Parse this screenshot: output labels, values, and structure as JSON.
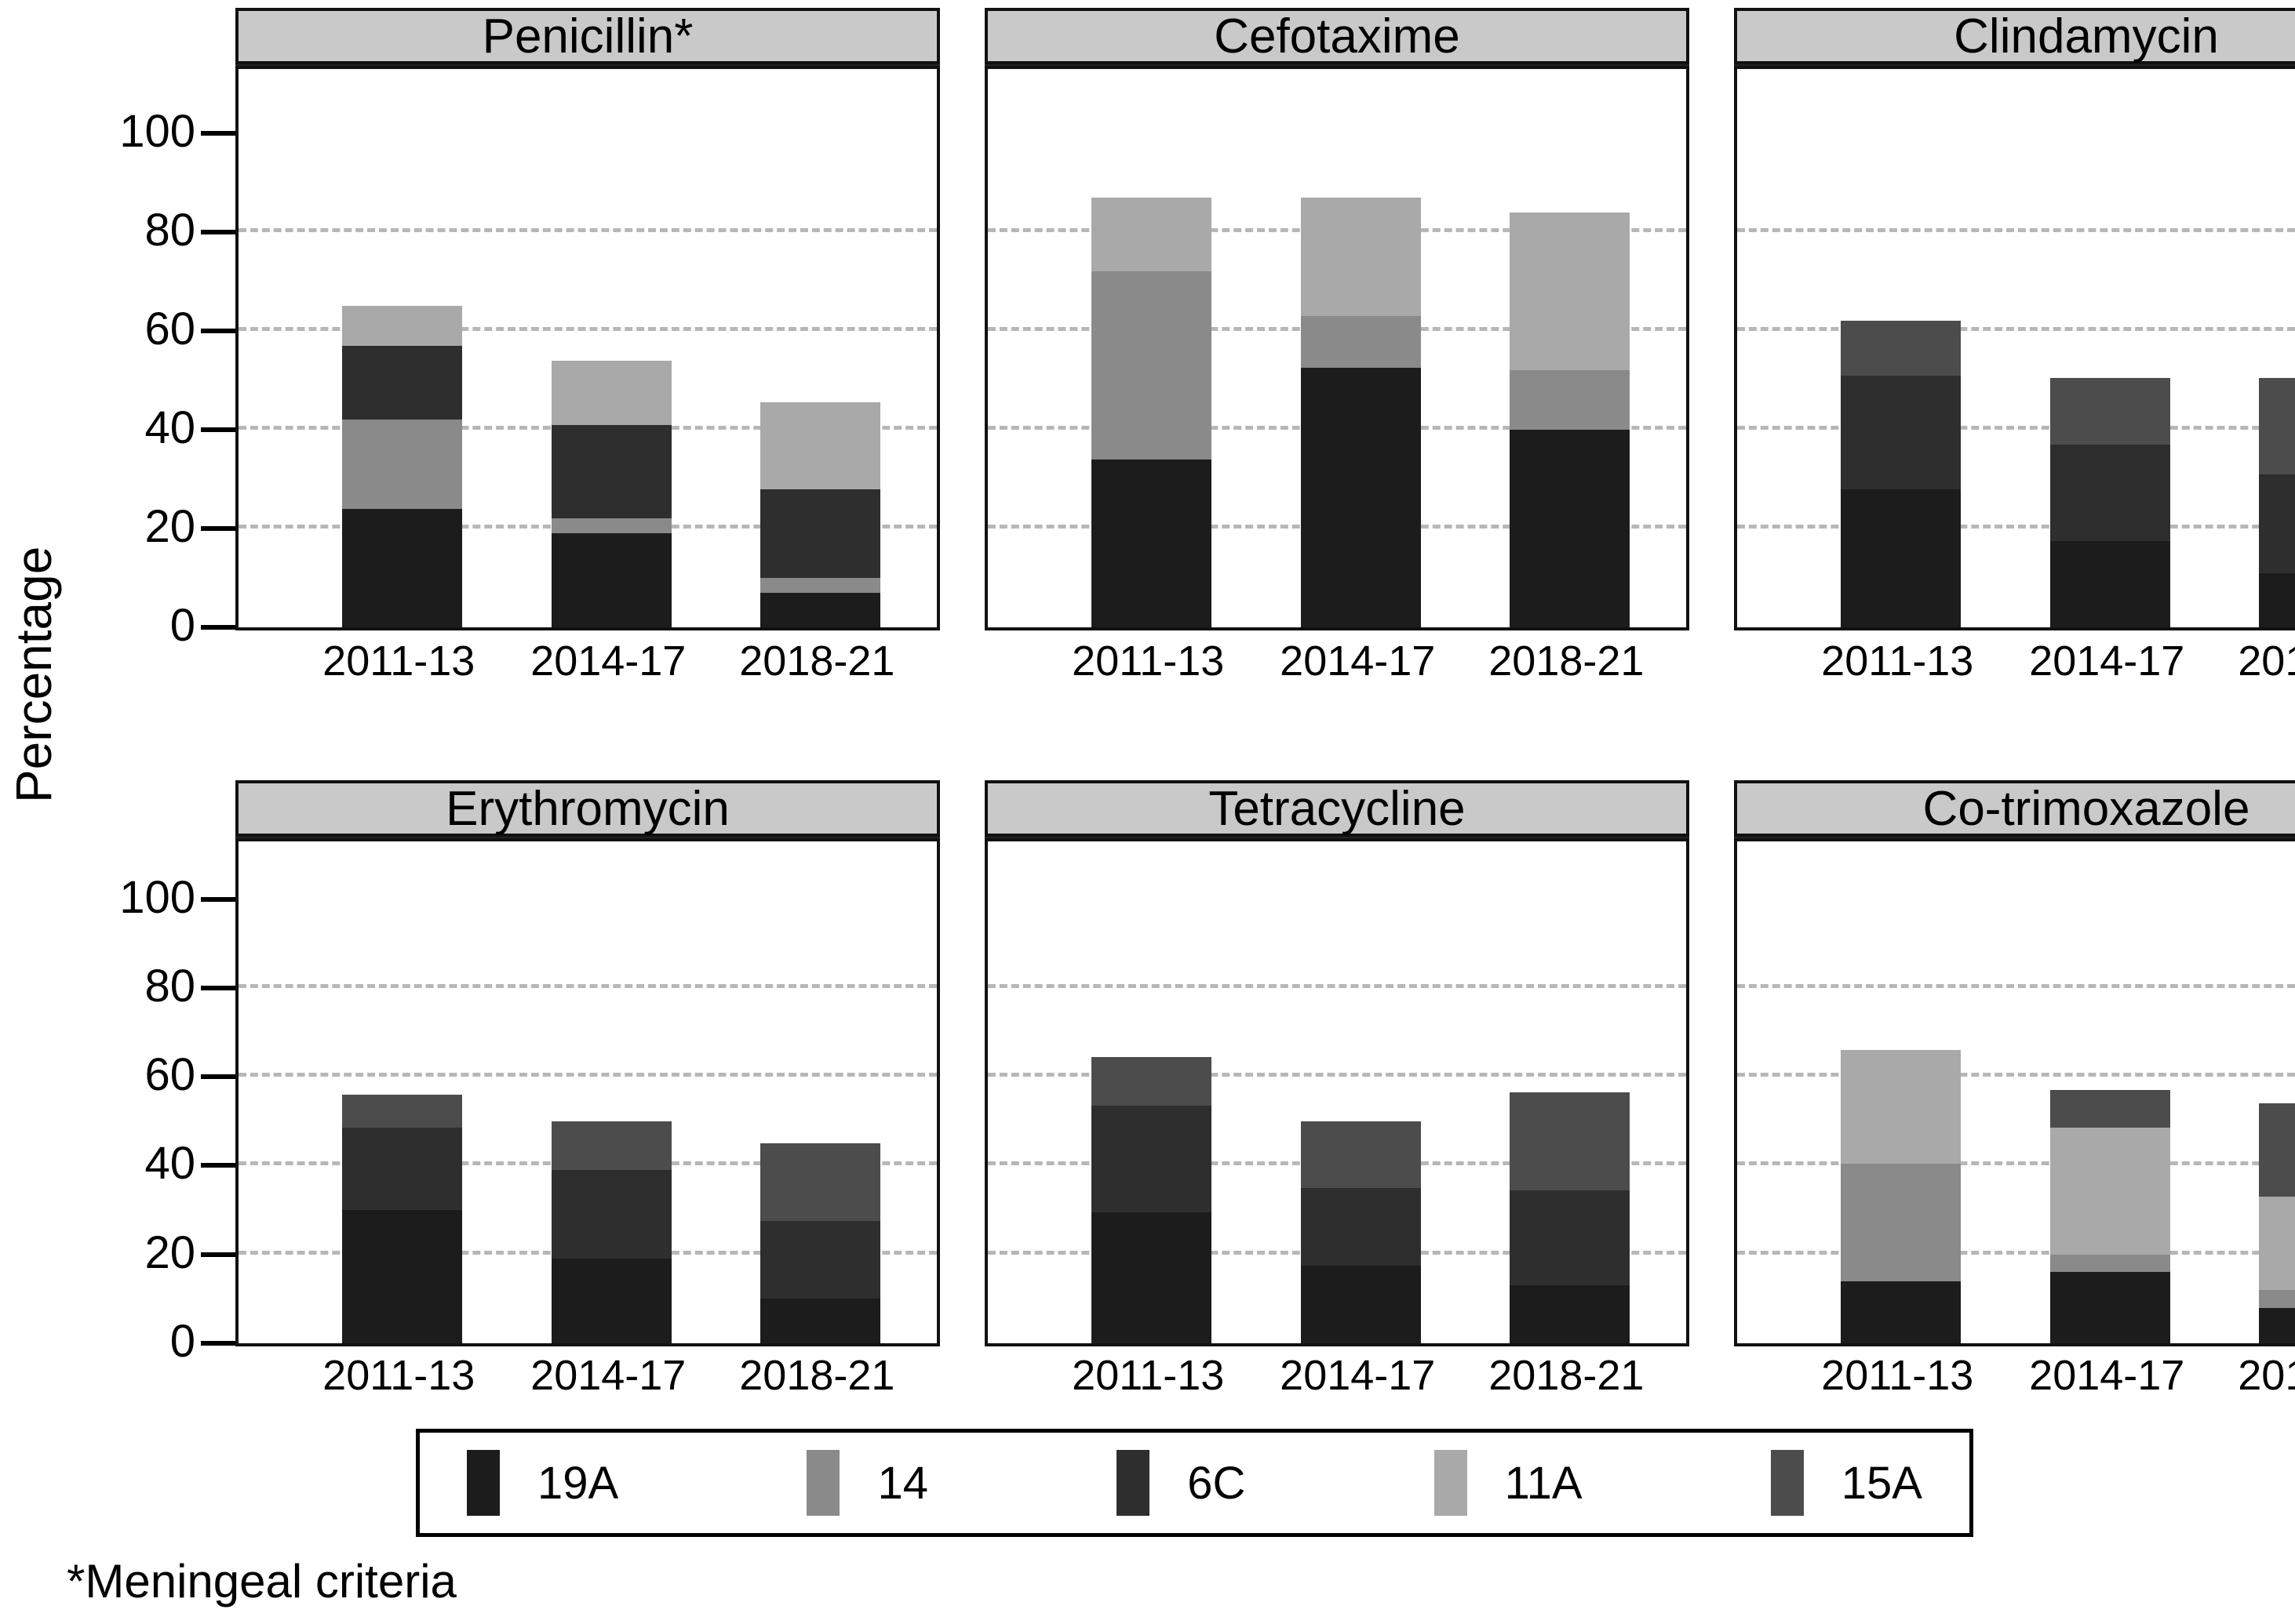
{
  "figure": {
    "ylabel": "Percentage",
    "footnote": "*Meningeal criteria",
    "header_bg": "#c9c9c9",
    "series_colors": {
      "19A": "#1c1c1c",
      "14": "#8a8a8a",
      "6C": "#2e2e2e",
      "11A": "#a9a9a9",
      "15A": "#4c4c4c"
    }
  },
  "chart_data": {
    "type": "bar",
    "stacked": true,
    "title": "",
    "ylabel": "Percentage",
    "xlabel": "",
    "categories": [
      "2011-13",
      "2014-17",
      "2018-21"
    ],
    "y_ticks": [
      100,
      80,
      60,
      40,
      20,
      0
    ],
    "gridlines": [
      20,
      40,
      60,
      80
    ],
    "ylim": [
      0,
      113
    ],
    "grid": "dashed-horizontal",
    "legend_position": "bottom",
    "legend": {
      "entries": [
        "19A",
        "14",
        "6C",
        "11A",
        "15A"
      ]
    },
    "panels": [
      {
        "title": "Penicillin*",
        "series": [
          {
            "name": "19A",
            "values": [
              24,
              19,
              7
            ]
          },
          {
            "name": "14",
            "values": [
              18,
              3,
              3
            ]
          },
          {
            "name": "6C",
            "values": [
              15,
              19,
              18
            ]
          },
          {
            "name": "11A",
            "values": [
              8,
              13,
              17.5
            ]
          },
          {
            "name": "15A",
            "values": [
              0,
              0,
              0
            ]
          }
        ],
        "totals": [
          65,
          54,
          45.5
        ]
      },
      {
        "title": "Cefotaxime",
        "series": [
          {
            "name": "19A",
            "values": [
              34,
              52.5,
              40
            ]
          },
          {
            "name": "14",
            "values": [
              38,
              10.5,
              12
            ]
          },
          {
            "name": "6C",
            "values": [
              0,
              0,
              0
            ]
          },
          {
            "name": "11A",
            "values": [
              15,
              24,
              32
            ]
          },
          {
            "name": "15A",
            "values": [
              0,
              0,
              0
            ]
          }
        ],
        "totals": [
          87,
          87,
          84
        ]
      },
      {
        "title": "Clindamycin",
        "series": [
          {
            "name": "19A",
            "values": [
              28,
              17.5,
              11
            ]
          },
          {
            "name": "14",
            "values": [
              0,
              0,
              0
            ]
          },
          {
            "name": "6C",
            "values": [
              23,
              19.5,
              20
            ]
          },
          {
            "name": "11A",
            "values": [
              0,
              0,
              0
            ]
          },
          {
            "name": "15A",
            "values": [
              11,
              13.5,
              19.5
            ]
          }
        ],
        "totals": [
          62,
          50.5,
          50.5
        ]
      },
      {
        "title": "Erythromycin",
        "series": [
          {
            "name": "19A",
            "values": [
              30,
              19,
              10
            ]
          },
          {
            "name": "14",
            "values": [
              0,
              0,
              0
            ]
          },
          {
            "name": "6C",
            "values": [
              18.5,
              20,
              17.5
            ]
          },
          {
            "name": "11A",
            "values": [
              0,
              0,
              0
            ]
          },
          {
            "name": "15A",
            "values": [
              7.5,
              11,
              17.5
            ]
          }
        ],
        "totals": [
          56,
          50,
          45
        ]
      },
      {
        "title": "Tetracycline",
        "series": [
          {
            "name": "19A",
            "values": [
              29.5,
              17.5,
              13
            ]
          },
          {
            "name": "14",
            "values": [
              0,
              0,
              0
            ]
          },
          {
            "name": "6C",
            "values": [
              24,
              17.5,
              21.5
            ]
          },
          {
            "name": "11A",
            "values": [
              0,
              0,
              0
            ]
          },
          {
            "name": "15A",
            "values": [
              11,
              15,
              22
            ]
          }
        ],
        "totals": [
          64.5,
          50,
          56.5
        ]
      },
      {
        "title": "Co-trimoxazole",
        "series": [
          {
            "name": "19A",
            "values": [
              14,
              16,
              8
            ]
          },
          {
            "name": "14",
            "values": [
              26.5,
              4,
              4
            ]
          },
          {
            "name": "6C",
            "values": [
              0,
              0,
              0
            ]
          },
          {
            "name": "11A",
            "values": [
              25.5,
              28.5,
              21
            ]
          },
          {
            "name": "15A",
            "values": [
              0,
              8.5,
              21
            ]
          }
        ],
        "totals": [
          66,
          57,
          54
        ]
      }
    ]
  }
}
